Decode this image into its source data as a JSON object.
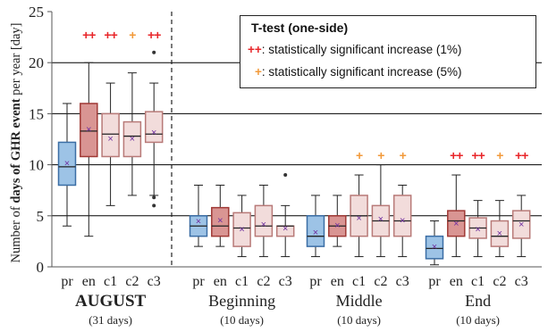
{
  "chart_data": {
    "type": "box",
    "ylabel_parts": [
      "Number of ",
      "days of GHR event",
      " per year [day]"
    ],
    "ylim": [
      0,
      25
    ],
    "yticks": [
      0,
      5,
      10,
      15,
      20,
      25
    ],
    "grid_lines_at": [
      5,
      10,
      15,
      20
    ],
    "members": [
      "pr",
      "en",
      "c1",
      "c2",
      "c3"
    ],
    "colors": {
      "pr": "#9dc3e6",
      "en": "#d99593",
      "c1": "#f2dcdb",
      "c2": "#f2dcdb",
      "c3": "#f2dcdb",
      "pr_edge": "#3b6ea5",
      "en_edge": "#a03a36",
      "pale_edge": "#b87a78",
      "mean_marker": "#7030a0",
      "sig_1pct": "#e8262a",
      "sig_5pct": "#f29a3a"
    },
    "groups": [
      {
        "name": "AUGUST",
        "days": "(31 days)",
        "bold": true,
        "boxes": [
          {
            "member": "pr",
            "min": 4,
            "q1": 8,
            "median": 9.8,
            "q3": 12.2,
            "max": 16,
            "mean": 10.2,
            "outliers": [],
            "sig": ""
          },
          {
            "member": "en",
            "min": 3,
            "q1": 10.8,
            "median": 13.3,
            "q3": 16,
            "max": 20,
            "mean": 13.5,
            "outliers": [],
            "sig": "++"
          },
          {
            "member": "c1",
            "min": 6,
            "q1": 10.8,
            "median": 13,
            "q3": 15,
            "max": 18,
            "mean": 12.6,
            "outliers": [],
            "sig": "++"
          },
          {
            "member": "c2",
            "min": 7,
            "q1": 10.8,
            "median": 12.8,
            "q3": 14.2,
            "max": 19,
            "mean": 12.6,
            "outliers": [],
            "sig": "+"
          },
          {
            "member": "c3",
            "min": 7,
            "q1": 12.2,
            "median": 13,
            "q3": 15.2,
            "max": 18,
            "mean": 13.2,
            "outliers": [
              21,
              6.8,
              6
            ],
            "sig": "++"
          }
        ]
      },
      {
        "name": "Beginning",
        "days": "(10 days)",
        "bold": false,
        "boxes": [
          {
            "member": "pr",
            "min": 2,
            "q1": 3,
            "median": 4,
            "q3": 5,
            "max": 8,
            "mean": 4.5,
            "outliers": [],
            "sig": ""
          },
          {
            "member": "en",
            "min": 2,
            "q1": 3,
            "median": 4,
            "q3": 5.8,
            "max": 8,
            "mean": 4.6,
            "outliers": [],
            "sig": ""
          },
          {
            "member": "c1",
            "min": 1,
            "q1": 2,
            "median": 3.8,
            "q3": 5.3,
            "max": 7,
            "mean": 3.7,
            "outliers": [],
            "sig": ""
          },
          {
            "member": "c2",
            "min": 1,
            "q1": 3,
            "median": 4,
            "q3": 6,
            "max": 8,
            "mean": 4.2,
            "outliers": [],
            "sig": ""
          },
          {
            "member": "c3",
            "min": 1,
            "q1": 3,
            "median": 4,
            "q3": 4,
            "max": 6,
            "mean": 3.8,
            "outliers": [
              9
            ],
            "sig": ""
          }
        ]
      },
      {
        "name": "Middle",
        "days": "(10 days)",
        "bold": false,
        "boxes": [
          {
            "member": "pr",
            "min": 1,
            "q1": 2,
            "median": 3,
            "q3": 5,
            "max": 7,
            "mean": 3.4,
            "outliers": [],
            "sig": ""
          },
          {
            "member": "en",
            "min": 2,
            "q1": 3,
            "median": 4,
            "q3": 5,
            "max": 7,
            "mean": 4.1,
            "outliers": [],
            "sig": ""
          },
          {
            "member": "c1",
            "min": 1,
            "q1": 3,
            "median": 5,
            "q3": 7,
            "max": 9,
            "mean": 4.8,
            "outliers": [],
            "sig": "+"
          },
          {
            "member": "c2",
            "min": 1,
            "q1": 3,
            "median": 4.5,
            "q3": 6,
            "max": 10,
            "mean": 4.7,
            "outliers": [],
            "sig": "+"
          },
          {
            "member": "c3",
            "min": 1,
            "q1": 3,
            "median": 4.5,
            "q3": 7,
            "max": 8,
            "mean": 4.6,
            "outliers": [],
            "sig": "+"
          }
        ]
      },
      {
        "name": "End",
        "days": "(10 days)",
        "bold": false,
        "boxes": [
          {
            "member": "pr",
            "min": 0.2,
            "q1": 0.8,
            "median": 1.8,
            "q3": 3,
            "max": 4.5,
            "mean": 2,
            "outliers": [],
            "sig": ""
          },
          {
            "member": "en",
            "min": 1,
            "q1": 3,
            "median": 4.5,
            "q3": 5.5,
            "max": 9,
            "mean": 4.3,
            "outliers": [],
            "sig": "++"
          },
          {
            "member": "c1",
            "min": 1,
            "q1": 2.8,
            "median": 3.8,
            "q3": 4.8,
            "max": 6.5,
            "mean": 3.7,
            "outliers": [],
            "sig": "++"
          },
          {
            "member": "c2",
            "min": 1,
            "q1": 2,
            "median": 3,
            "q3": 4.5,
            "max": 6.5,
            "mean": 3.3,
            "outliers": [],
            "sig": "+"
          },
          {
            "member": "c3",
            "min": 1,
            "q1": 2.8,
            "median": 4.5,
            "q3": 5.5,
            "max": 7,
            "mean": 4.2,
            "outliers": [],
            "sig": "++"
          }
        ]
      }
    ]
  },
  "legend": {
    "title": "T-test (one-side)",
    "rows": [
      {
        "symbol": "++",
        "text": ": statistically significant increase (1%)",
        "color": "sig_1pct"
      },
      {
        "symbol": "+",
        "text": ": statistically significant increase (5%)",
        "color": "sig_5pct"
      }
    ]
  }
}
